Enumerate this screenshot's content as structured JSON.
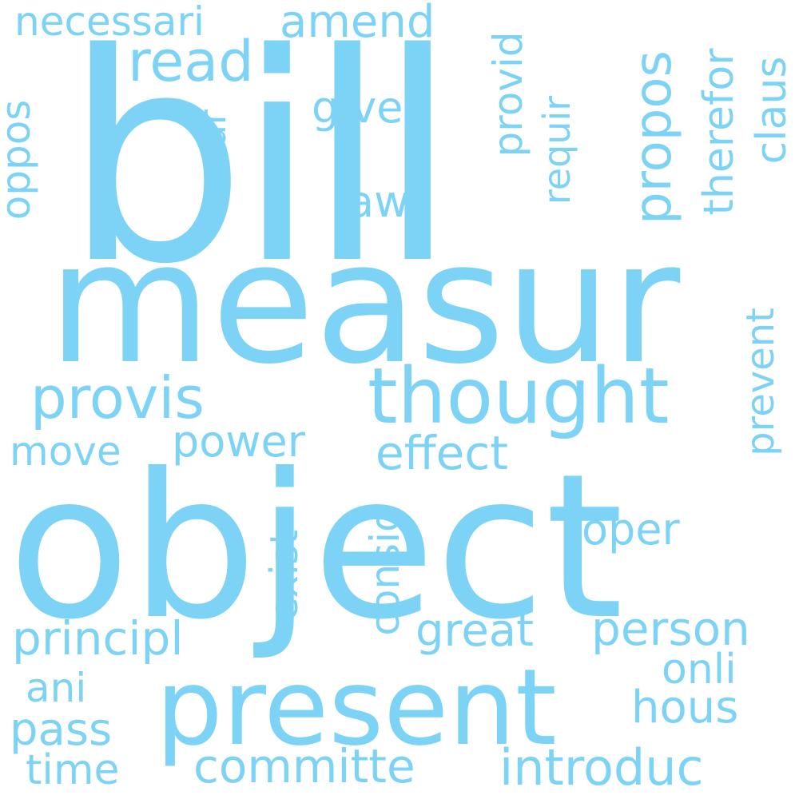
{
  "colors": {
    "background": "#ffffff",
    "word": "#7dd3f5"
  },
  "words": {
    "bill": "bill",
    "measur": "measur",
    "object": "object",
    "present": "present",
    "thought": "thought",
    "provis": "provis",
    "read": "read",
    "amend": "amend",
    "necessari": "necessari",
    "give": "give",
    "propos": "propos",
    "provid": "provid",
    "therefor": "therefor",
    "claus": "claus",
    "oppos": "oppos",
    "secur": "secur",
    "law": "law",
    "requir": "requir",
    "prevent": "prevent",
    "power": "power",
    "effect": "effect",
    "move": "move",
    "oper": "oper",
    "exist": "exist",
    "consid": "consid",
    "principl": "principl",
    "great": "great",
    "person": "person",
    "onli": "onli",
    "ani": "ani",
    "hous": "hous",
    "pass": "pass",
    "time": "time",
    "committe": "committe",
    "introduc": "introduc"
  }
}
